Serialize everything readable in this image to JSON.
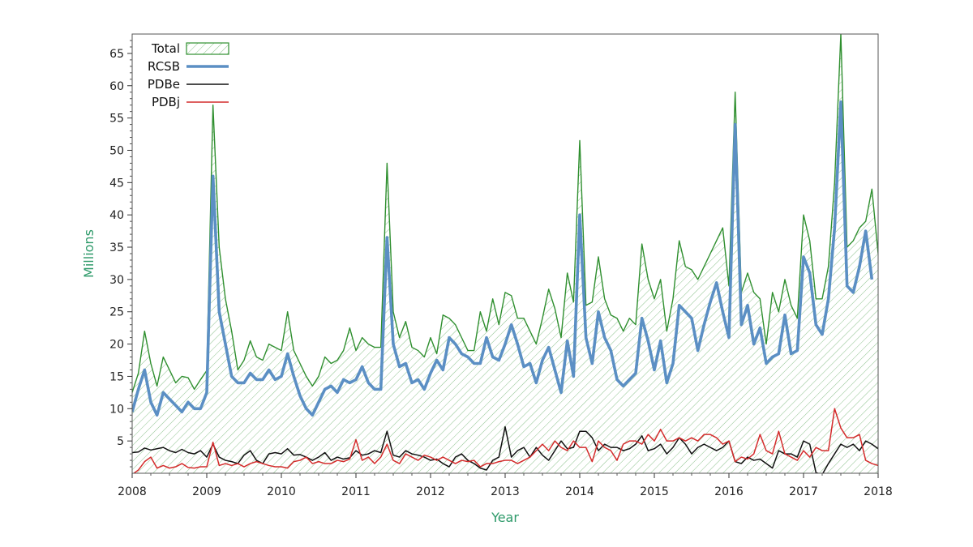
{
  "chart_data": {
    "type": "area",
    "title": "",
    "xlabel": "Year",
    "ylabel": "Millions",
    "xlim": [
      2008,
      2018
    ],
    "ylim": [
      0,
      68
    ],
    "x_ticks": [
      "2008",
      "2009",
      "2010",
      "2011",
      "2012",
      "2013",
      "2014",
      "2015",
      "2016",
      "2017",
      "2018"
    ],
    "y_ticks": [
      "5",
      "10",
      "15",
      "20",
      "25",
      "30",
      "35",
      "40",
      "45",
      "50",
      "55",
      "60",
      "65"
    ],
    "grid": false,
    "legend_position": "top-left",
    "x_start": "2008-01",
    "x_step": "1 month",
    "series": [
      {
        "name": "Total",
        "style": "hatched-area",
        "color": "#2f8f2f",
        "values": [
          12.5,
          15.5,
          22.0,
          17.0,
          13.5,
          18.0,
          16.0,
          14.0,
          15.0,
          14.8,
          13.0,
          14.5,
          15.9,
          57.0,
          35.0,
          27.0,
          22.0,
          16.0,
          17.5,
          20.5,
          18.0,
          17.5,
          20.0,
          19.5,
          19.0,
          25.0,
          19.0,
          17.0,
          15.0,
          13.5,
          15.0,
          18.0,
          17.0,
          17.5,
          19.0,
          22.5,
          19.0,
          21.0,
          20.0,
          19.5,
          19.5,
          48.0,
          25.0,
          21.0,
          23.5,
          19.5,
          19.0,
          18.0,
          21.0,
          18.5,
          24.5,
          24.0,
          23.0,
          21.0,
          19.0,
          19.0,
          25.0,
          22.0,
          27.0,
          23.0,
          28.0,
          27.5,
          24.0,
          24.0,
          22.0,
          20.0,
          24.0,
          28.5,
          25.5,
          21.0,
          31.0,
          26.5,
          51.5,
          26.0,
          26.5,
          33.5,
          27.0,
          24.5,
          24.0,
          22.0,
          24.0,
          23.0,
          35.5,
          30.0,
          27.0,
          30.0,
          22.0,
          27.0,
          36.0,
          32.0,
          31.5,
          30.0,
          32.0,
          34.0,
          36.0,
          38.0,
          29.0,
          59.0,
          28.0,
          31.0,
          28.0,
          27.0,
          20.0,
          28.0,
          25.0,
          30.0,
          26.0,
          24.0,
          40.0,
          36.0,
          27.0,
          27.0,
          32.0,
          45.0,
          68.0,
          35.0,
          36.0,
          38.0,
          39.0,
          44.0,
          34.0
        ]
      },
      {
        "name": "RCSB",
        "style": "thick-line",
        "color": "#5b8fc4",
        "values": [
          9.5,
          13.0,
          16.0,
          11.0,
          9.0,
          12.5,
          11.5,
          10.5,
          9.5,
          11.0,
          10.0,
          10.0,
          12.5,
          46.0,
          25.0,
          20.0,
          15.0,
          14.0,
          14.0,
          15.5,
          14.5,
          14.5,
          16.0,
          14.5,
          15.0,
          18.5,
          15.0,
          12.0,
          10.0,
          9.0,
          11.0,
          13.0,
          13.5,
          12.5,
          14.5,
          14.0,
          14.5,
          16.5,
          14.0,
          13.0,
          13.0,
          36.5,
          20.0,
          16.5,
          17.0,
          14.0,
          14.5,
          13.0,
          15.5,
          17.5,
          16.0,
          21.0,
          20.0,
          18.5,
          18.0,
          17.0,
          17.0,
          21.0,
          18.0,
          17.5,
          20.0,
          23.0,
          20.0,
          16.5,
          17.0,
          14.0,
          17.5,
          19.5,
          16.0,
          12.5,
          20.5,
          15.0,
          40.0,
          21.0,
          17.0,
          25.0,
          21.0,
          19.0,
          14.5,
          13.5,
          14.5,
          15.5,
          24.0,
          20.5,
          16.0,
          20.5,
          14.0,
          17.0,
          26.0,
          25.0,
          24.0,
          19.0,
          23.0,
          26.5,
          29.5,
          25.0,
          21.0,
          54.0,
          23.0,
          26.0,
          20.0,
          22.5,
          17.0,
          18.0,
          18.5,
          24.5,
          18.5,
          19.0,
          33.5,
          31.0,
          23.0,
          21.5,
          27.0,
          38.0,
          57.5,
          29.0,
          28.0,
          32.0,
          37.5,
          30.0
        ]
      },
      {
        "name": "PDBe",
        "style": "thin-line",
        "color": "#111111",
        "values": [
          3.2,
          3.3,
          3.9,
          3.6,
          3.8,
          4.0,
          3.5,
          3.2,
          3.7,
          3.2,
          3.0,
          3.5,
          2.5,
          4.5,
          2.5,
          2.0,
          1.8,
          1.5,
          2.8,
          3.5,
          2.0,
          1.5,
          3.0,
          3.2,
          3.0,
          3.8,
          2.8,
          2.9,
          2.5,
          2.0,
          2.5,
          3.2,
          2.0,
          2.5,
          2.2,
          2.4,
          3.5,
          2.8,
          3.0,
          3.5,
          3.2,
          6.5,
          2.8,
          2.5,
          3.5,
          3.0,
          2.8,
          2.5,
          2.0,
          2.2,
          1.5,
          1.0,
          2.5,
          3.0,
          2.0,
          1.5,
          0.8,
          0.5,
          2.0,
          2.5,
          7.2,
          2.5,
          3.5,
          4.0,
          2.5,
          4.0,
          2.8,
          2.0,
          3.5,
          5.0,
          3.8,
          4.0,
          6.5,
          6.5,
          5.5,
          3.5,
          4.5,
          4.0,
          4.0,
          3.5,
          3.8,
          4.5,
          5.8,
          3.5,
          3.8,
          4.5,
          3.0,
          4.0,
          5.5,
          4.5,
          3.0,
          4.0,
          4.5,
          4.0,
          3.5,
          4.0,
          5.0,
          1.8,
          1.5,
          2.5,
          2.0,
          2.2,
          1.5,
          0.8,
          3.5,
          3.0,
          3.0,
          2.5,
          5.0,
          4.5,
          0.1,
          -0.2,
          1.5,
          3.0,
          4.5,
          4.0,
          4.5,
          3.5,
          5.0,
          4.5,
          3.8
        ]
      },
      {
        "name": "PDBj",
        "style": "thin-line",
        "color": "#d42b2b",
        "values": [
          -0.2,
          0.5,
          1.8,
          2.5,
          0.8,
          1.2,
          0.8,
          1.0,
          1.5,
          0.9,
          0.8,
          1.0,
          1.0,
          4.8,
          1.2,
          1.5,
          1.2,
          1.5,
          1.0,
          1.5,
          1.8,
          1.5,
          1.2,
          1.0,
          1.0,
          0.8,
          1.8,
          2.0,
          2.5,
          1.5,
          1.8,
          1.5,
          1.5,
          2.0,
          1.8,
          2.2,
          5.2,
          2.0,
          2.5,
          1.5,
          2.5,
          4.5,
          2.0,
          1.5,
          3.0,
          2.5,
          2.0,
          2.8,
          2.5,
          2.0,
          2.5,
          2.0,
          1.5,
          2.0,
          1.8,
          2.0,
          1.0,
          1.5,
          1.5,
          1.8,
          2.0,
          2.0,
          1.5,
          2.0,
          2.5,
          3.5,
          4.5,
          3.5,
          5.0,
          4.0,
          3.5,
          5.0,
          4.0,
          4.0,
          1.8,
          5.0,
          4.0,
          3.5,
          2.0,
          4.5,
          5.0,
          5.0,
          4.5,
          6.0,
          5.0,
          6.8,
          5.0,
          5.0,
          5.5,
          5.0,
          5.5,
          5.0,
          6.0,
          6.0,
          5.5,
          4.5,
          5.0,
          1.8,
          2.5,
          2.2,
          3.0,
          6.0,
          3.5,
          3.0,
          6.5,
          3.0,
          2.5,
          2.0,
          3.5,
          2.5,
          4.0,
          3.5,
          3.5,
          10.0,
          7.0,
          5.5,
          5.5,
          6.0,
          2.0,
          1.5,
          1.2
        ]
      }
    ]
  }
}
